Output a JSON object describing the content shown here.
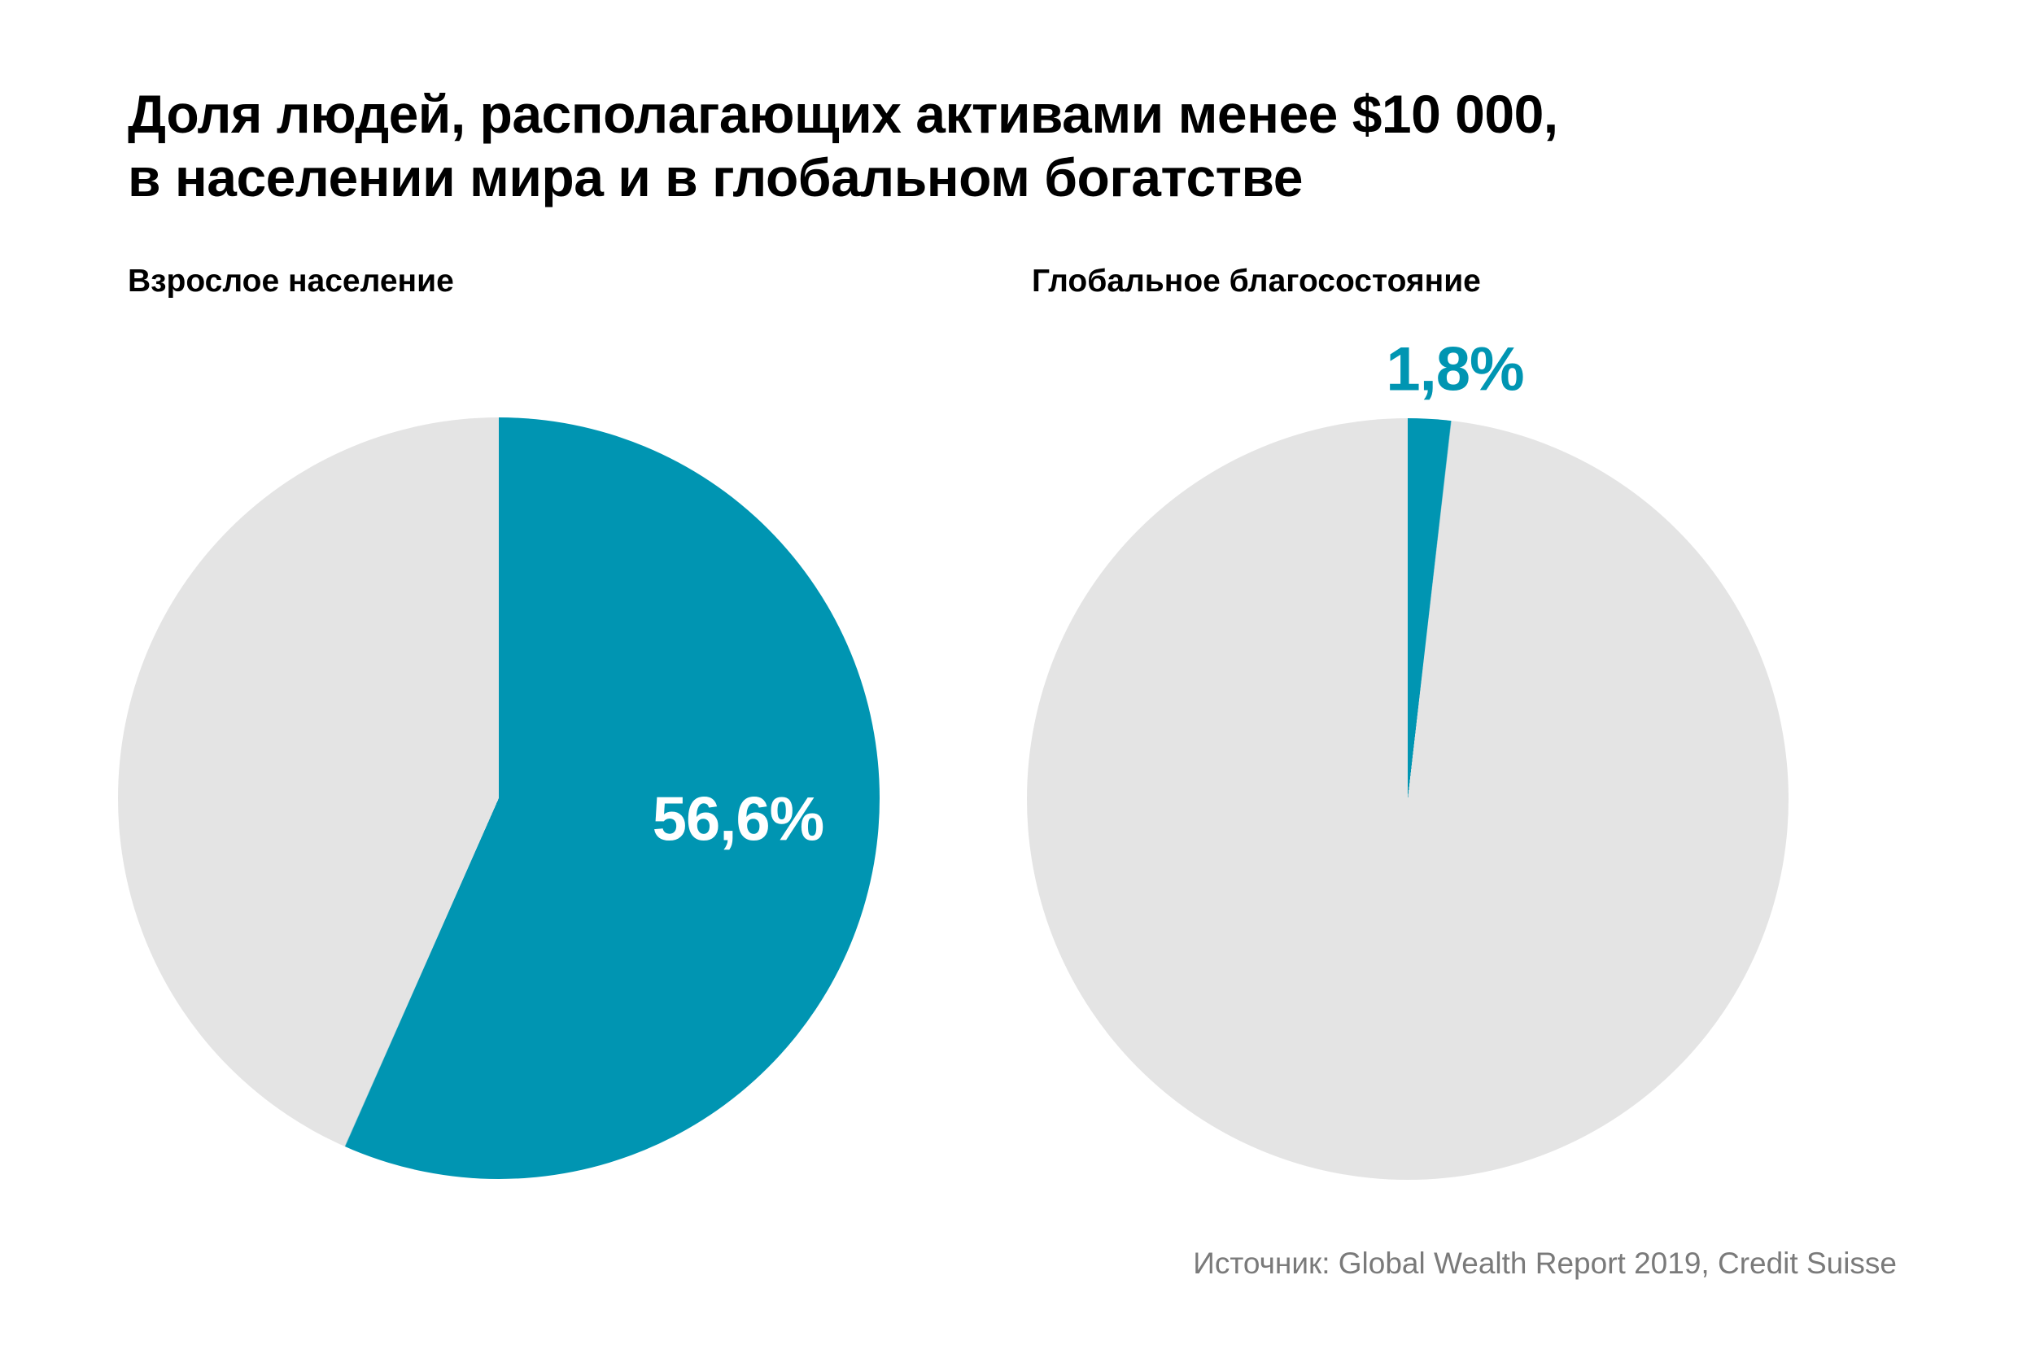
{
  "title": {
    "line1": "Доля людей, располагающих активами менее $10 000,",
    "line2": "в населении мира и в глобальном богатстве"
  },
  "source": "Источник: Global Wealth Report 2019, Credit Suisse",
  "colors": {
    "accent": "#0095B2",
    "muted": "#E4E4E4",
    "title_text": "#000000",
    "source_text": "#7A7A7A",
    "value_label_on_slice": "#FFFFFF"
  },
  "chart_data": [
    {
      "type": "pie",
      "title": "Взрослое население",
      "start_angle_deg": 0,
      "direction": "clockwise",
      "legend": "none",
      "slices": [
        {
          "display": "56,6%",
          "value": 56.6,
          "color_role": "accent",
          "label_position": "inside-slice"
        },
        {
          "display": "",
          "value": 43.4,
          "color_role": "muted",
          "label_position": "none"
        }
      ]
    },
    {
      "type": "pie",
      "title": "Глобальное благосостояние",
      "start_angle_deg": 0,
      "direction": "clockwise",
      "legend": "none",
      "slices": [
        {
          "display": "1,8%",
          "value": 1.8,
          "color_role": "accent",
          "label_position": "above-slice"
        },
        {
          "display": "",
          "value": 98.2,
          "color_role": "muted",
          "label_position": "none"
        }
      ]
    }
  ]
}
